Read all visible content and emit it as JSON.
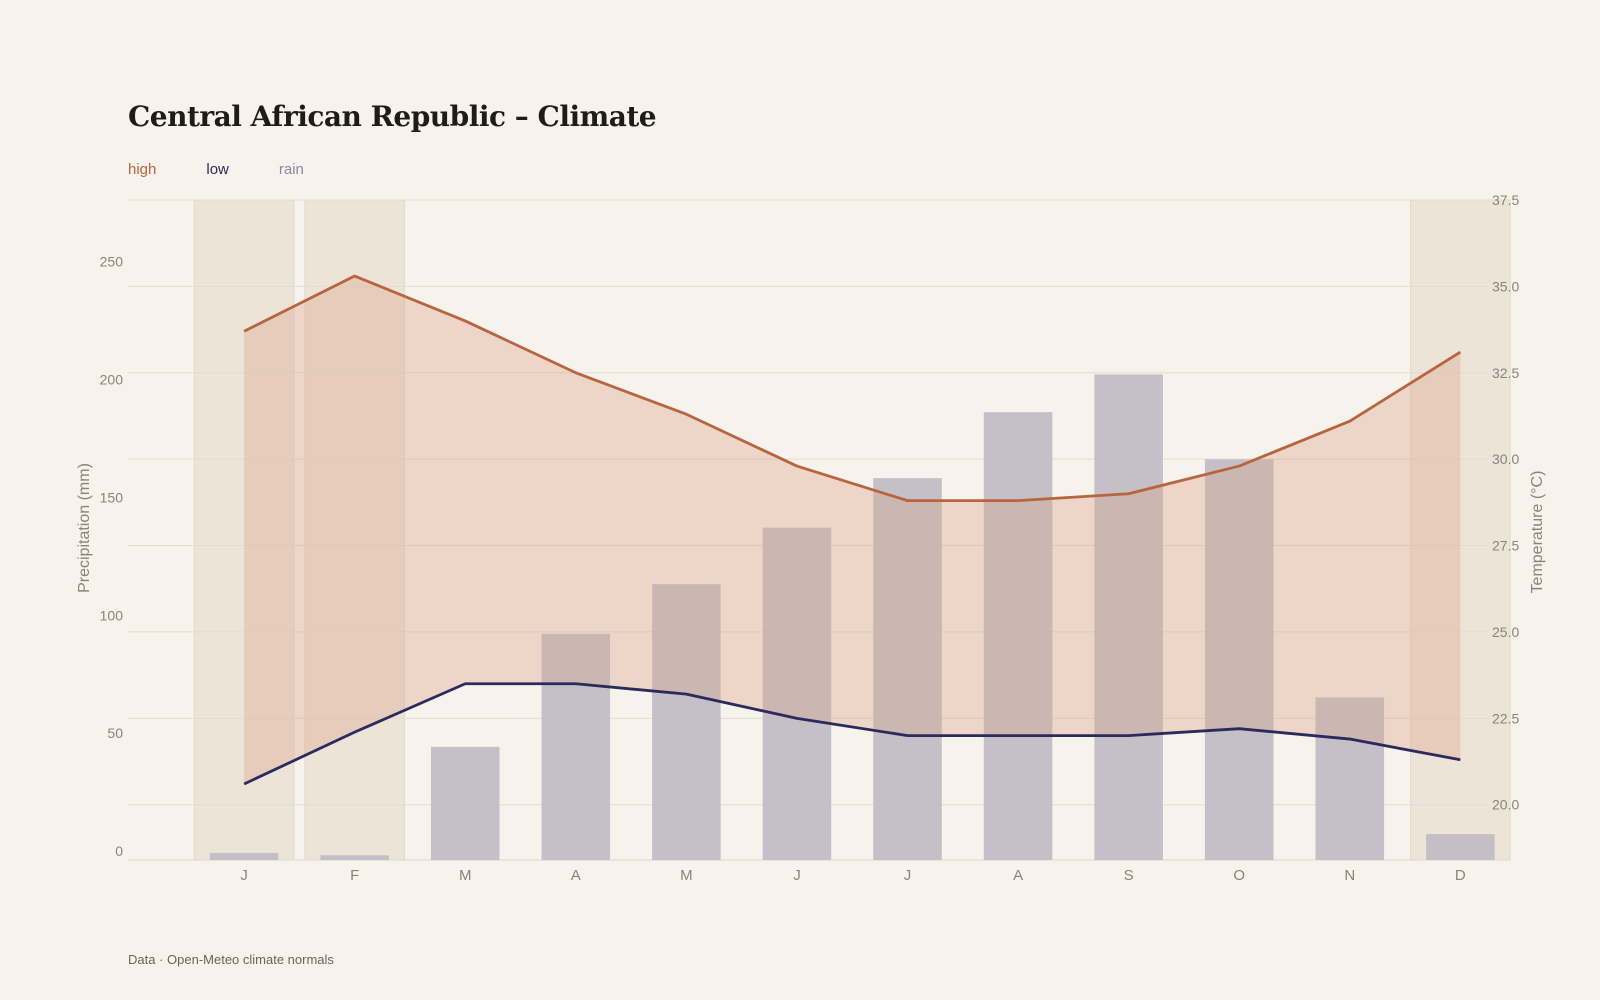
{
  "title": "Central African Republic – Climate",
  "source": "Data · Open-Meteo climate normals",
  "legend": [
    {
      "label": "high",
      "color": "#b8643f"
    },
    {
      "label": "low",
      "color": "#2b2a5c"
    },
    {
      "label": "rain",
      "color": "#8e87a3"
    }
  ],
  "chart_data": {
    "type": "bar",
    "categories": [
      "J",
      "F",
      "M",
      "A",
      "M",
      "J",
      "J",
      "A",
      "S",
      "O",
      "N",
      "D"
    ],
    "dry_season_months": [
      0,
      1,
      11
    ],
    "series": [
      {
        "name": "rain",
        "type": "bar",
        "axis": "left",
        "color": "#c2bdc6",
        "values": [
          3,
          2,
          48,
          96,
          117,
          141,
          162,
          190,
          206,
          170,
          69,
          11
        ]
      },
      {
        "name": "high",
        "type": "line",
        "axis": "right",
        "color": "#b8643f",
        "values": [
          33.7,
          35.3,
          34.0,
          32.5,
          31.3,
          29.8,
          28.8,
          28.8,
          29.0,
          29.8,
          31.1,
          33.1
        ]
      },
      {
        "name": "low",
        "type": "line",
        "axis": "right",
        "color": "#2b2a5c",
        "values": [
          20.6,
          22.1,
          23.5,
          23.5,
          23.2,
          22.5,
          22.0,
          22.0,
          22.0,
          22.2,
          21.9,
          21.3
        ]
      }
    ],
    "y_left": {
      "label": "Precipitation (mm)",
      "ticks": [
        0,
        50,
        100,
        150,
        200,
        250
      ],
      "range": [
        0,
        280
      ]
    },
    "y_right": {
      "label": "Temperature (°C)",
      "ticks": [
        20.0,
        22.5,
        25.0,
        27.5,
        30.0,
        32.5,
        35.0,
        37.5
      ],
      "range": [
        18.4,
        37.5
      ]
    },
    "grid": true,
    "legend_position": "top-left"
  }
}
